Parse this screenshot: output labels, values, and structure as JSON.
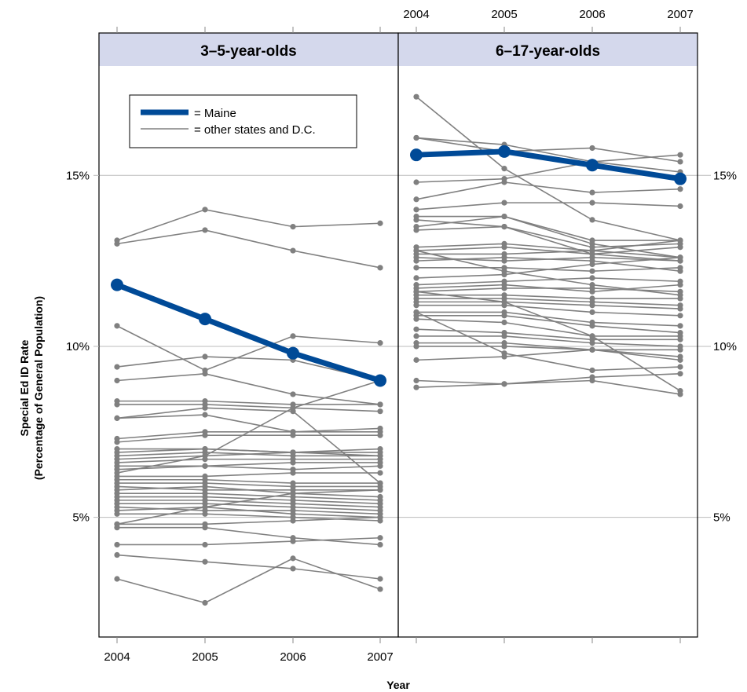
{
  "chart_data": {
    "type": "line",
    "layout": "two-panel lattice",
    "ylabel_line1": "Special Ed ID Rate",
    "ylabel_line2": "(Percentage of General Population)",
    "xlabel": "Year",
    "x": [
      "2004",
      "2005",
      "2006",
      "2007"
    ],
    "ylim": [
      1.5,
      18.2
    ],
    "yticks": [
      5,
      10,
      15
    ],
    "ytick_labels": [
      "5%",
      "10%",
      "15%"
    ],
    "grid": "horizontal at y ticks",
    "legend": {
      "position": "top-left",
      "highlight_label": "= Maine",
      "others_label": "= other states and D.C."
    },
    "colors": {
      "highlight": "#004a97",
      "others": "#808080",
      "strip": "#d4d8ec",
      "grid": "#bbbbbb"
    },
    "panels": [
      {
        "title": "3–5-year-olds",
        "highlight": {
          "name": "Maine",
          "values": [
            11.8,
            10.8,
            9.8,
            9.0
          ]
        },
        "others": [
          [
            13.1,
            14.0,
            13.5,
            13.6
          ],
          [
            13.0,
            13.4,
            12.8,
            12.3
          ],
          [
            10.6,
            9.3,
            10.3,
            10.1
          ],
          [
            9.4,
            9.7,
            9.6,
            9.0
          ],
          [
            9.0,
            9.2,
            8.6,
            8.3
          ],
          [
            8.4,
            8.4,
            8.3,
            8.3
          ],
          [
            8.3,
            8.3,
            8.2,
            8.1
          ],
          [
            7.9,
            8.2,
            8.1,
            6.0
          ],
          [
            7.9,
            8.0,
            7.5,
            7.6
          ],
          [
            7.3,
            7.5,
            7.5,
            7.5
          ],
          [
            7.2,
            7.4,
            7.4,
            7.4
          ],
          [
            7.0,
            7.0,
            6.9,
            7.0
          ],
          [
            6.9,
            7.0,
            6.9,
            6.9
          ],
          [
            6.8,
            6.9,
            6.8,
            6.8
          ],
          [
            6.7,
            6.8,
            6.9,
            6.8
          ],
          [
            6.6,
            6.7,
            6.7,
            6.7
          ],
          [
            6.5,
            6.5,
            6.6,
            6.6
          ],
          [
            6.4,
            6.5,
            6.4,
            6.5
          ],
          [
            6.2,
            6.2,
            6.3,
            6.3
          ],
          [
            6.1,
            6.1,
            6.0,
            6.0
          ],
          [
            6.0,
            6.0,
            5.9,
            5.9
          ],
          [
            5.9,
            5.8,
            5.8,
            5.8
          ],
          [
            5.8,
            5.9,
            5.7,
            5.6
          ],
          [
            5.7,
            5.7,
            5.6,
            5.5
          ],
          [
            5.6,
            5.6,
            5.5,
            5.4
          ],
          [
            5.5,
            5.5,
            5.4,
            5.3
          ],
          [
            5.4,
            5.4,
            5.3,
            5.2
          ],
          [
            5.3,
            5.2,
            5.2,
            5.1
          ],
          [
            5.2,
            5.3,
            5.1,
            5.0
          ],
          [
            5.1,
            5.1,
            5.0,
            4.9
          ],
          [
            4.8,
            4.8,
            4.9,
            5.0
          ],
          [
            4.7,
            4.7,
            4.4,
            4.2
          ],
          [
            4.2,
            4.2,
            4.3,
            4.4
          ],
          [
            3.9,
            3.7,
            3.5,
            3.2
          ],
          [
            3.2,
            2.5,
            3.8,
            2.9
          ],
          [
            6.3,
            6.8,
            8.2,
            9.0
          ],
          [
            4.8,
            5.3,
            5.7,
            5.8
          ]
        ]
      },
      {
        "title": "6–17-year-olds",
        "highlight": {
          "name": "Maine",
          "values": [
            15.6,
            15.7,
            15.3,
            14.9
          ]
        },
        "others": [
          [
            17.3,
            15.2,
            13.7,
            13.1
          ],
          [
            16.1,
            15.9,
            15.4,
            15.1
          ],
          [
            16.1,
            15.7,
            15.8,
            15.4
          ],
          [
            14.8,
            14.9,
            15.4,
            15.6
          ],
          [
            14.3,
            14.8,
            14.5,
            14.6
          ],
          [
            14.0,
            14.2,
            14.2,
            14.1
          ],
          [
            13.8,
            13.8,
            13.1,
            13.1
          ],
          [
            13.7,
            13.5,
            12.7,
            12.5
          ],
          [
            13.5,
            13.8,
            13.0,
            12.6
          ],
          [
            13.4,
            13.5,
            12.9,
            13.0
          ],
          [
            12.9,
            13.0,
            12.8,
            12.6
          ],
          [
            12.7,
            12.7,
            12.8,
            13.1
          ],
          [
            12.6,
            12.5,
            12.6,
            12.5
          ],
          [
            12.5,
            12.6,
            12.5,
            12.2
          ],
          [
            12.3,
            12.3,
            12.2,
            12.3
          ],
          [
            12.0,
            12.1,
            12.4,
            12.6
          ],
          [
            11.8,
            11.9,
            12.0,
            11.9
          ],
          [
            11.7,
            11.8,
            11.6,
            11.8
          ],
          [
            11.6,
            11.7,
            11.7,
            11.6
          ],
          [
            11.5,
            11.5,
            11.4,
            11.4
          ],
          [
            11.4,
            11.4,
            11.3,
            11.2
          ],
          [
            11.3,
            11.3,
            11.2,
            11.1
          ],
          [
            11.2,
            11.2,
            11.0,
            10.9
          ],
          [
            11.0,
            11.0,
            10.7,
            10.6
          ],
          [
            10.9,
            10.9,
            10.6,
            10.4
          ],
          [
            10.8,
            10.7,
            10.3,
            10.3
          ],
          [
            10.5,
            10.4,
            10.2,
            10.2
          ],
          [
            10.3,
            10.3,
            10.1,
            10.0
          ],
          [
            10.1,
            10.1,
            9.9,
            9.7
          ],
          [
            10.0,
            10.0,
            9.9,
            9.6
          ],
          [
            9.6,
            9.7,
            9.9,
            9.9
          ],
          [
            9.0,
            8.9,
            9.1,
            9.2
          ],
          [
            8.8,
            8.9,
            9.0,
            8.6
          ],
          [
            11.0,
            9.8,
            9.3,
            9.4
          ],
          [
            12.8,
            12.2,
            11.8,
            11.5
          ],
          [
            11.6,
            11.3,
            10.3,
            8.7
          ],
          [
            12.8,
            12.9,
            12.7,
            12.9
          ]
        ]
      }
    ]
  }
}
